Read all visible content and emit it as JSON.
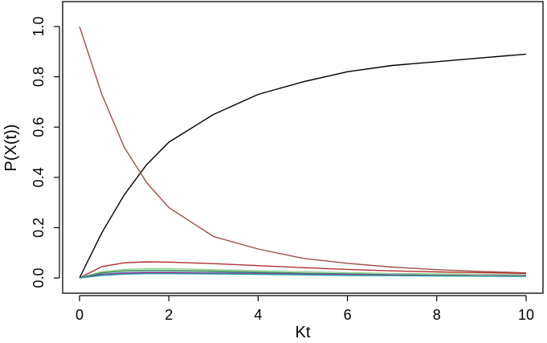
{
  "chart_data": {
    "type": "line",
    "xlabel": "Kt",
    "ylabel": "P(X(t))",
    "xlim": [
      0,
      10
    ],
    "ylim": [
      0,
      1.0
    ],
    "x_ticks": [
      "0",
      "2",
      "4",
      "6",
      "8",
      "10"
    ],
    "y_ticks": [
      "0.0",
      "0.2",
      "0.4",
      "0.6",
      "0.8",
      "1.0"
    ],
    "grid": false,
    "legend": "none",
    "series": [
      {
        "color": "#000000",
        "x": [
          0,
          0.5,
          1,
          1.5,
          2,
          3,
          4,
          5,
          6,
          7,
          8,
          9,
          10
        ],
        "y": [
          0,
          0.18,
          0.33,
          0.45,
          0.54,
          0.65,
          0.73,
          0.78,
          0.82,
          0.845,
          0.86,
          0.875,
          0.89
        ]
      },
      {
        "color": "#a0504a",
        "x": [
          0,
          0.5,
          1,
          1.5,
          2,
          3,
          4,
          5,
          6,
          7,
          8,
          9,
          10
        ],
        "y": [
          1.0,
          0.73,
          0.52,
          0.38,
          0.28,
          0.165,
          0.115,
          0.078,
          0.058,
          0.043,
          0.033,
          0.026,
          0.02
        ]
      },
      {
        "color": "#b03030",
        "x": [
          0,
          0.5,
          1,
          1.5,
          2,
          3,
          4,
          5,
          6,
          7,
          8,
          9,
          10
        ],
        "y": [
          0,
          0.045,
          0.06,
          0.064,
          0.063,
          0.057,
          0.049,
          0.041,
          0.034,
          0.028,
          0.024,
          0.021,
          0.018
        ]
      },
      {
        "color": "#90d090",
        "x": [
          0,
          0.5,
          1,
          1.5,
          2,
          3,
          4,
          5,
          6,
          7,
          8,
          9,
          10
        ],
        "y": [
          0,
          0.025,
          0.034,
          0.037,
          0.037,
          0.033,
          0.029,
          0.025,
          0.021,
          0.018,
          0.016,
          0.014,
          0.012
        ]
      },
      {
        "color": "#2a8a3a",
        "x": [
          0,
          0.5,
          1,
          1.5,
          2,
          3,
          4,
          5,
          6,
          7,
          8,
          9,
          10
        ],
        "y": [
          0,
          0.02,
          0.028,
          0.03,
          0.03,
          0.027,
          0.023,
          0.019,
          0.016,
          0.013,
          0.011,
          0.009,
          0.008
        ]
      },
      {
        "color": "#4a6ac8",
        "x": [
          0,
          0.5,
          1,
          1.5,
          2,
          3,
          4,
          5,
          6,
          7,
          8,
          9,
          10
        ],
        "y": [
          0,
          0.015,
          0.021,
          0.023,
          0.023,
          0.021,
          0.019,
          0.016,
          0.014,
          0.012,
          0.01,
          0.009,
          0.008
        ]
      },
      {
        "color": "#c03080",
        "x": [
          0,
          0.5,
          1,
          1.5,
          2,
          3,
          4,
          5,
          6,
          7,
          8,
          9,
          10
        ],
        "y": [
          0,
          0.012,
          0.018,
          0.02,
          0.02,
          0.018,
          0.016,
          0.014,
          0.012,
          0.011,
          0.01,
          0.009,
          0.008
        ]
      },
      {
        "color": "#20a0a0",
        "x": [
          0,
          0.5,
          1,
          1.5,
          2,
          3,
          4,
          5,
          6,
          7,
          8,
          9,
          10
        ],
        "y": [
          0,
          0.01,
          0.015,
          0.017,
          0.017,
          0.016,
          0.014,
          0.012,
          0.01,
          0.009,
          0.008,
          0.007,
          0.006
        ]
      }
    ]
  }
}
